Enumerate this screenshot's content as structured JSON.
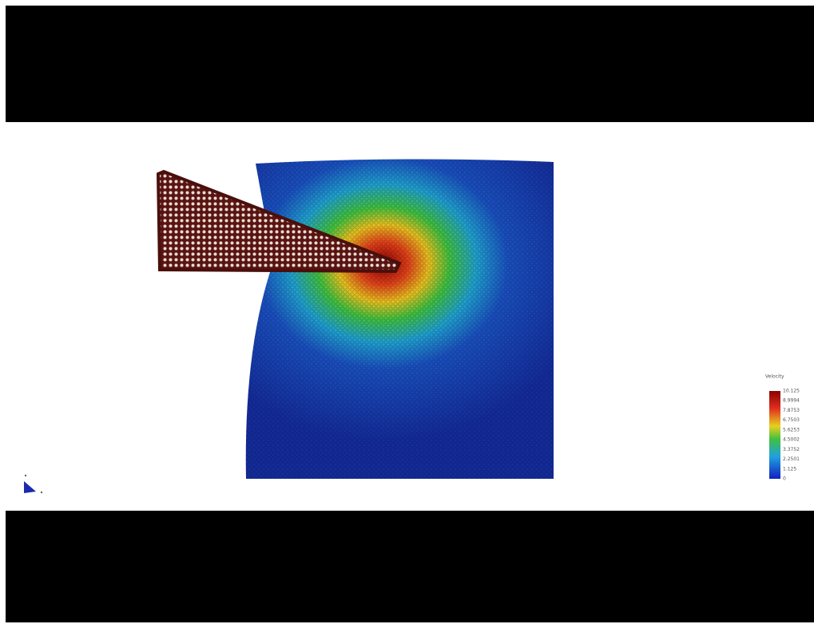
{
  "legend": {
    "title": "Velocity",
    "labels": [
      10.125,
      8.9994,
      7.8753,
      6.7503,
      5.6253,
      4.5002,
      3.3752,
      2.2501,
      1.125,
      0
    ]
  }
}
